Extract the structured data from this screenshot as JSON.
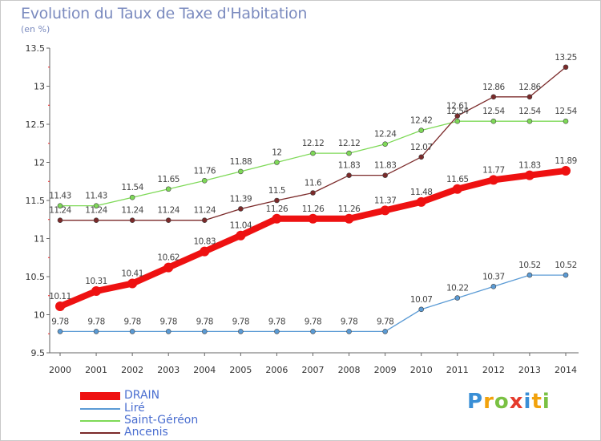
{
  "title": "Evolution du Taux de Taxe d'Habitation",
  "subtitle": "(en %)",
  "logo": {
    "text": "Proxiti",
    "letters": [
      "P",
      "r",
      "o",
      "x",
      "i",
      "t",
      "i"
    ]
  },
  "chart_data": {
    "type": "line",
    "x": [
      "2000",
      "2001",
      "2002",
      "2003",
      "2004",
      "2005",
      "2006",
      "2007",
      "2008",
      "2009",
      "2010",
      "2011",
      "2012",
      "2013",
      "2014"
    ],
    "ylim": [
      9.5,
      13.5
    ],
    "yticks": [
      "9.5",
      "10",
      "10.5",
      "11",
      "11.5",
      "12",
      "12.5",
      "13",
      "13.5"
    ],
    "grid": false,
    "legend_position": "bottom-left",
    "series": [
      {
        "name": "DRAIN",
        "color": "#ee1111",
        "values": [
          10.11,
          10.31,
          10.41,
          10.62,
          10.83,
          11.04,
          11.26,
          11.26,
          11.26,
          11.37,
          11.48,
          11.65,
          11.77,
          11.83,
          11.89
        ],
        "labels": [
          "10.11",
          "10.31",
          "10.41",
          "10.62",
          "10.83",
          "11.04",
          "11.26",
          "11.26",
          "11.26",
          "11.37",
          "11.48",
          "11.65",
          "11.77",
          "11.83",
          "11.89"
        ]
      },
      {
        "name": "Liré",
        "color": "#5b9bd5",
        "values": [
          9.78,
          9.78,
          9.78,
          9.78,
          9.78,
          9.78,
          9.78,
          9.78,
          9.78,
          9.78,
          10.07,
          10.22,
          10.37,
          10.52,
          10.52
        ],
        "labels": [
          "9.78",
          "9.78",
          "9.78",
          "9.78",
          "9.78",
          "9.78",
          "9.78",
          "9.78",
          "9.78",
          "9.78",
          "10.07",
          "10.22",
          "10.37",
          "10.52",
          "10.52"
        ]
      },
      {
        "name": "Saint-Géréon",
        "color": "#7ed957",
        "values": [
          11.43,
          11.43,
          11.54,
          11.65,
          11.76,
          11.88,
          12,
          12.12,
          12.12,
          12.24,
          12.42,
          12.54,
          12.54,
          12.54,
          12.54
        ],
        "labels": [
          "11.43",
          "11.43",
          "11.54",
          "11.65",
          "11.76",
          "11.88",
          "12",
          "12.12",
          "12.12",
          "12.24",
          "12.42",
          "12.54",
          "12.54",
          "12.54",
          "12.54"
        ]
      },
      {
        "name": "Ancenis",
        "color": "#7b2a2a",
        "values": [
          11.24,
          11.24,
          11.24,
          11.24,
          11.24,
          11.39,
          11.5,
          11.6,
          11.83,
          11.83,
          12.07,
          12.61,
          12.86,
          12.86,
          13.25
        ],
        "labels": [
          "11.24",
          "11.24",
          "11.24",
          "11.24",
          "11.24",
          "11.39",
          "11.5",
          "11.6",
          "11.83",
          "11.83",
          "12.07",
          "12.61",
          "12.86",
          "12.86",
          "13.25"
        ]
      }
    ]
  }
}
